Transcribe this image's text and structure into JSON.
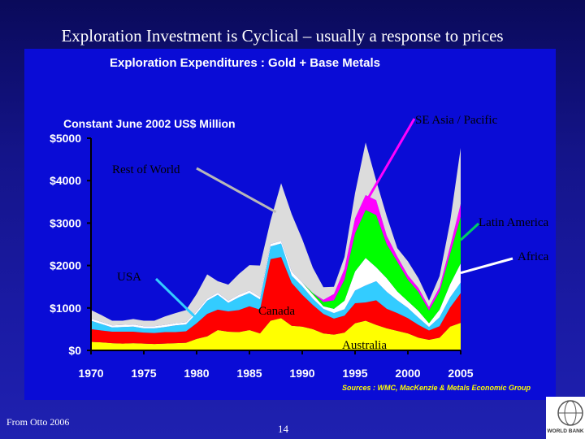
{
  "slide": {
    "title": "Exploration Investment is Cyclical – usually a response to prices",
    "footer_source": "From Otto 2006",
    "page_number": "14",
    "logo_text": "WORLD BANK"
  },
  "colors": {
    "background": "#1a1aa3",
    "panel": "#0a0cd6",
    "australia": "#ffff00",
    "canada": "#ff0000",
    "usa": "#33ccff",
    "africa": "#ffffff",
    "latin_america": "#00ff00",
    "se_asia_pacific": "#ff00ff",
    "rest_of_world": "#dcdcdc"
  },
  "chart_data": {
    "type": "area",
    "stacked": true,
    "title": "Exploration Expenditures : Gold + Base Metals",
    "ylabel": "Constant June 2002 US$ Million",
    "ylim": [
      0,
      5000
    ],
    "yticks": [
      0,
      1000,
      2000,
      3000,
      4000,
      5000
    ],
    "ytick_labels": [
      "$0",
      "$1000",
      "$2000",
      "$3000",
      "$4000",
      "$5000"
    ],
    "xticks": [
      1970,
      1975,
      1980,
      1985,
      1990,
      1995,
      2000,
      2005
    ],
    "xtick_labels": [
      "1970",
      "1975",
      "1980",
      "1985",
      "1990",
      "1995",
      "2000",
      "2005"
    ],
    "source": "Sources : WMC, MacKenzie & Metals Economic Group",
    "x": [
      1970,
      1971,
      1972,
      1973,
      1974,
      1975,
      1976,
      1977,
      1978,
      1979,
      1980,
      1981,
      1982,
      1983,
      1984,
      1985,
      1986,
      1987,
      1988,
      1989,
      1990,
      1991,
      1992,
      1993,
      1994,
      1995,
      1996,
      1997,
      1998,
      1999,
      2000,
      2001,
      2002,
      2003,
      2004,
      2005
    ],
    "series": [
      {
        "name": "Australia",
        "values": [
          200,
          190,
          170,
          160,
          170,
          160,
          150,
          160,
          170,
          180,
          270,
          330,
          480,
          440,
          430,
          480,
          400,
          700,
          760,
          580,
          560,
          500,
          400,
          370,
          420,
          640,
          700,
          600,
          520,
          460,
          400,
          300,
          250,
          300,
          560,
          650
        ]
      },
      {
        "name": "Canada",
        "values": [
          300,
          280,
          270,
          280,
          270,
          260,
          260,
          270,
          260,
          270,
          370,
          530,
          480,
          480,
          520,
          560,
          560,
          1450,
          1440,
          1010,
          750,
          570,
          460,
          380,
          400,
          470,
          430,
          580,
          460,
          420,
          360,
          300,
          220,
          270,
          450,
          700
        ]
      },
      {
        "name": "USA",
        "values": [
          200,
          150,
          100,
          110,
          120,
          100,
          110,
          120,
          160,
          160,
          230,
          310,
          350,
          200,
          300,
          310,
          240,
          300,
          320,
          170,
          200,
          150,
          120,
          130,
          150,
          300,
          400,
          450,
          400,
          300,
          240,
          170,
          80,
          210,
          240,
          250
        ]
      },
      {
        "name": "Africa",
        "values": [
          50,
          50,
          50,
          50,
          50,
          50,
          50,
          50,
          50,
          50,
          50,
          50,
          50,
          50,
          60,
          60,
          60,
          60,
          60,
          100,
          90,
          100,
          60,
          100,
          200,
          450,
          650,
          330,
          320,
          210,
          160,
          160,
          90,
          180,
          310,
          450
        ]
      },
      {
        "name": "Latin America",
        "values": [
          0,
          0,
          0,
          0,
          0,
          0,
          0,
          0,
          0,
          0,
          0,
          0,
          0,
          0,
          0,
          0,
          0,
          0,
          0,
          0,
          0,
          30,
          100,
          200,
          500,
          900,
          1130,
          1230,
          800,
          700,
          510,
          450,
          300,
          430,
          720,
          1100
        ]
      },
      {
        "name": "SE Asia / Pacific",
        "values": [
          0,
          0,
          0,
          0,
          0,
          0,
          0,
          0,
          0,
          0,
          0,
          0,
          0,
          0,
          0,
          0,
          0,
          0,
          0,
          0,
          0,
          0,
          50,
          150,
          250,
          350,
          350,
          350,
          200,
          120,
          100,
          90,
          80,
          100,
          170,
          300
        ]
      },
      {
        "name": "Rest of World",
        "values": [
          200,
          160,
          110,
          100,
          130,
          130,
          130,
          200,
          240,
          290,
          410,
          570,
          270,
          380,
          490,
          600,
          740,
          550,
          1360,
          1350,
          1020,
          600,
          300,
          170,
          280,
          600,
          1240,
          460,
          460,
          200,
          330,
          230,
          150,
          260,
          580,
          1320
        ]
      }
    ],
    "annotations": [
      {
        "label": "SE Asia / Pacific",
        "series": "SE Asia / Pacific",
        "x": 1996
      },
      {
        "label": "Rest of World",
        "series": "Rest of World",
        "x": 1987.5
      },
      {
        "label": "Latin America",
        "series": "Latin America",
        "x": 2005
      },
      {
        "label": "Africa",
        "series": "Africa",
        "x": 2005
      },
      {
        "label": "USA",
        "series": "USA",
        "x": 1980
      },
      {
        "label": "Canada",
        "series": "Canada",
        "x": 1987
      },
      {
        "label": "Australia",
        "series": "Australia",
        "x": 1992
      }
    ]
  }
}
